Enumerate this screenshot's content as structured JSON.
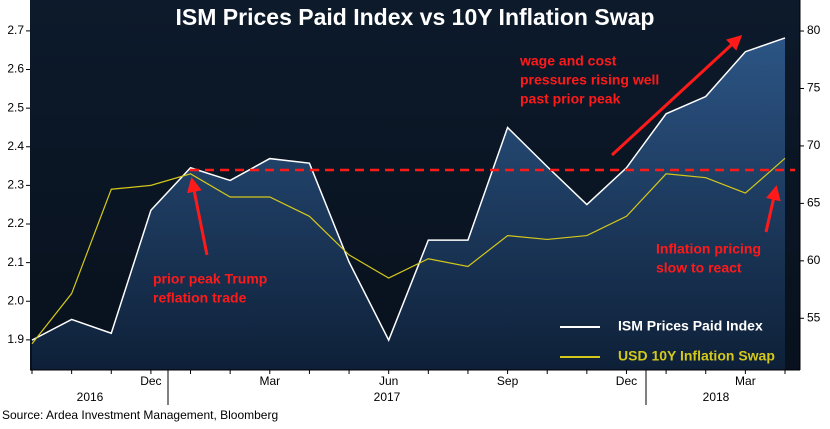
{
  "chart_data": {
    "type": "line",
    "title": "ISM Prices Paid Index vs 10Y Inflation Swap",
    "source": "Source: Ardea Investment Management, Bloomberg",
    "categories": [
      null,
      null,
      null,
      "Dec",
      null,
      null,
      "Mar",
      null,
      null,
      "Jun",
      null,
      null,
      "Sep",
      null,
      null,
      "Dec",
      null,
      null,
      "Mar",
      null
    ],
    "x_groups": [
      "2016",
      "2017",
      "2018"
    ],
    "series": [
      {
        "name": "ISM Prices Paid Index",
        "color": "#ffffff",
        "axis": "y2",
        "area": true,
        "values": [
          53.1,
          54.9,
          53.7,
          64.4,
          68.1,
          67.0,
          68.9,
          68.5,
          59.9,
          53.1,
          61.8,
          61.8,
          71.6,
          68.2,
          64.9,
          68.1,
          72.8,
          74.3,
          78.2,
          79.4
        ]
      },
      {
        "name": "USD 10Y Inflation Swap",
        "color": "#d4c81a",
        "axis": "y",
        "values": [
          1.89,
          2.02,
          2.29,
          2.3,
          2.33,
          2.27,
          2.27,
          2.22,
          2.12,
          2.06,
          2.11,
          2.09,
          2.17,
          2.16,
          2.17,
          2.22,
          2.33,
          2.32,
          2.28,
          2.37
        ]
      }
    ],
    "ylim": [
      1.822,
      2.78
    ],
    "yticks": [
      1.9,
      {
        "value": 2,
        "label": "2.0"
      },
      2.1,
      2.2,
      2.3,
      2.4,
      2.5,
      2.6,
      2.7
    ],
    "y2lim": [
      50.5,
      82.7
    ],
    "y2ticks": [
      55,
      60,
      65,
      70,
      75,
      80
    ],
    "reference_line": {
      "value": 67.9,
      "axis": "y2",
      "color": "#ff1a1a"
    },
    "annotations": [
      {
        "text": [
          "wage and cost",
          "pressures rising well",
          "past prior peak"
        ]
      },
      {
        "text": [
          "prior peak Trump",
          "reflation trade"
        ]
      },
      {
        "text": [
          "Inflation pricing",
          "slow to react"
        ]
      }
    ],
    "legend": "lower right"
  }
}
